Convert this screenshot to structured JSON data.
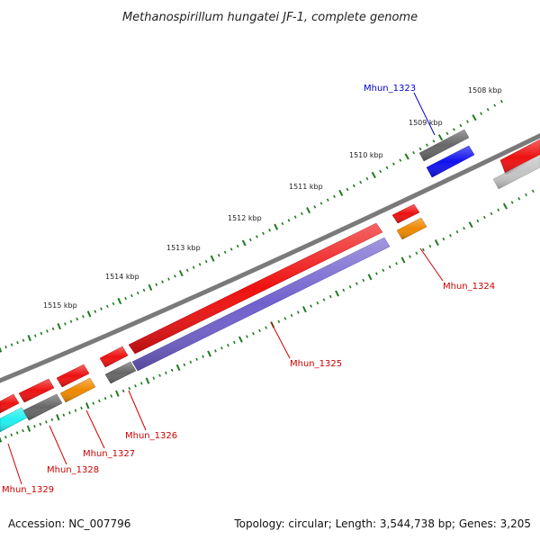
{
  "title": "Methanospirillum hungatei JF-1, complete genome",
  "footer": {
    "accession": "Accession: NC_007796",
    "summary": "Topology: circular; Length: 3,544,738 bp; Genes: 3,205"
  },
  "colors": {
    "backbone": "#7a7a7a",
    "tick": "#1f7a1f",
    "forward_gene": "#ee1111",
    "reverse_gene": "#7060cc",
    "gray_gene": "#666666",
    "light_gene": "#c4c4c4",
    "orange_gene": "#ee8800",
    "blue_gene": "#1111ee",
    "cyan_gene": "#22eeee",
    "label_red": "#cc0000",
    "label_blue": "#0000cc"
  },
  "scale_labels": [
    "1508 kbp",
    "1509 kbp",
    "1510 kbp",
    "1511 kbp",
    "1512 kbp",
    "1513 kbp",
    "1514 kbp",
    "1515 kbp"
  ],
  "gene_labels": [
    "Mhun_1323",
    "Mhun_1324",
    "Mhun_1325",
    "Mhun_1326",
    "Mhun_1327",
    "Mhun_1328",
    "Mhun_1329"
  ]
}
